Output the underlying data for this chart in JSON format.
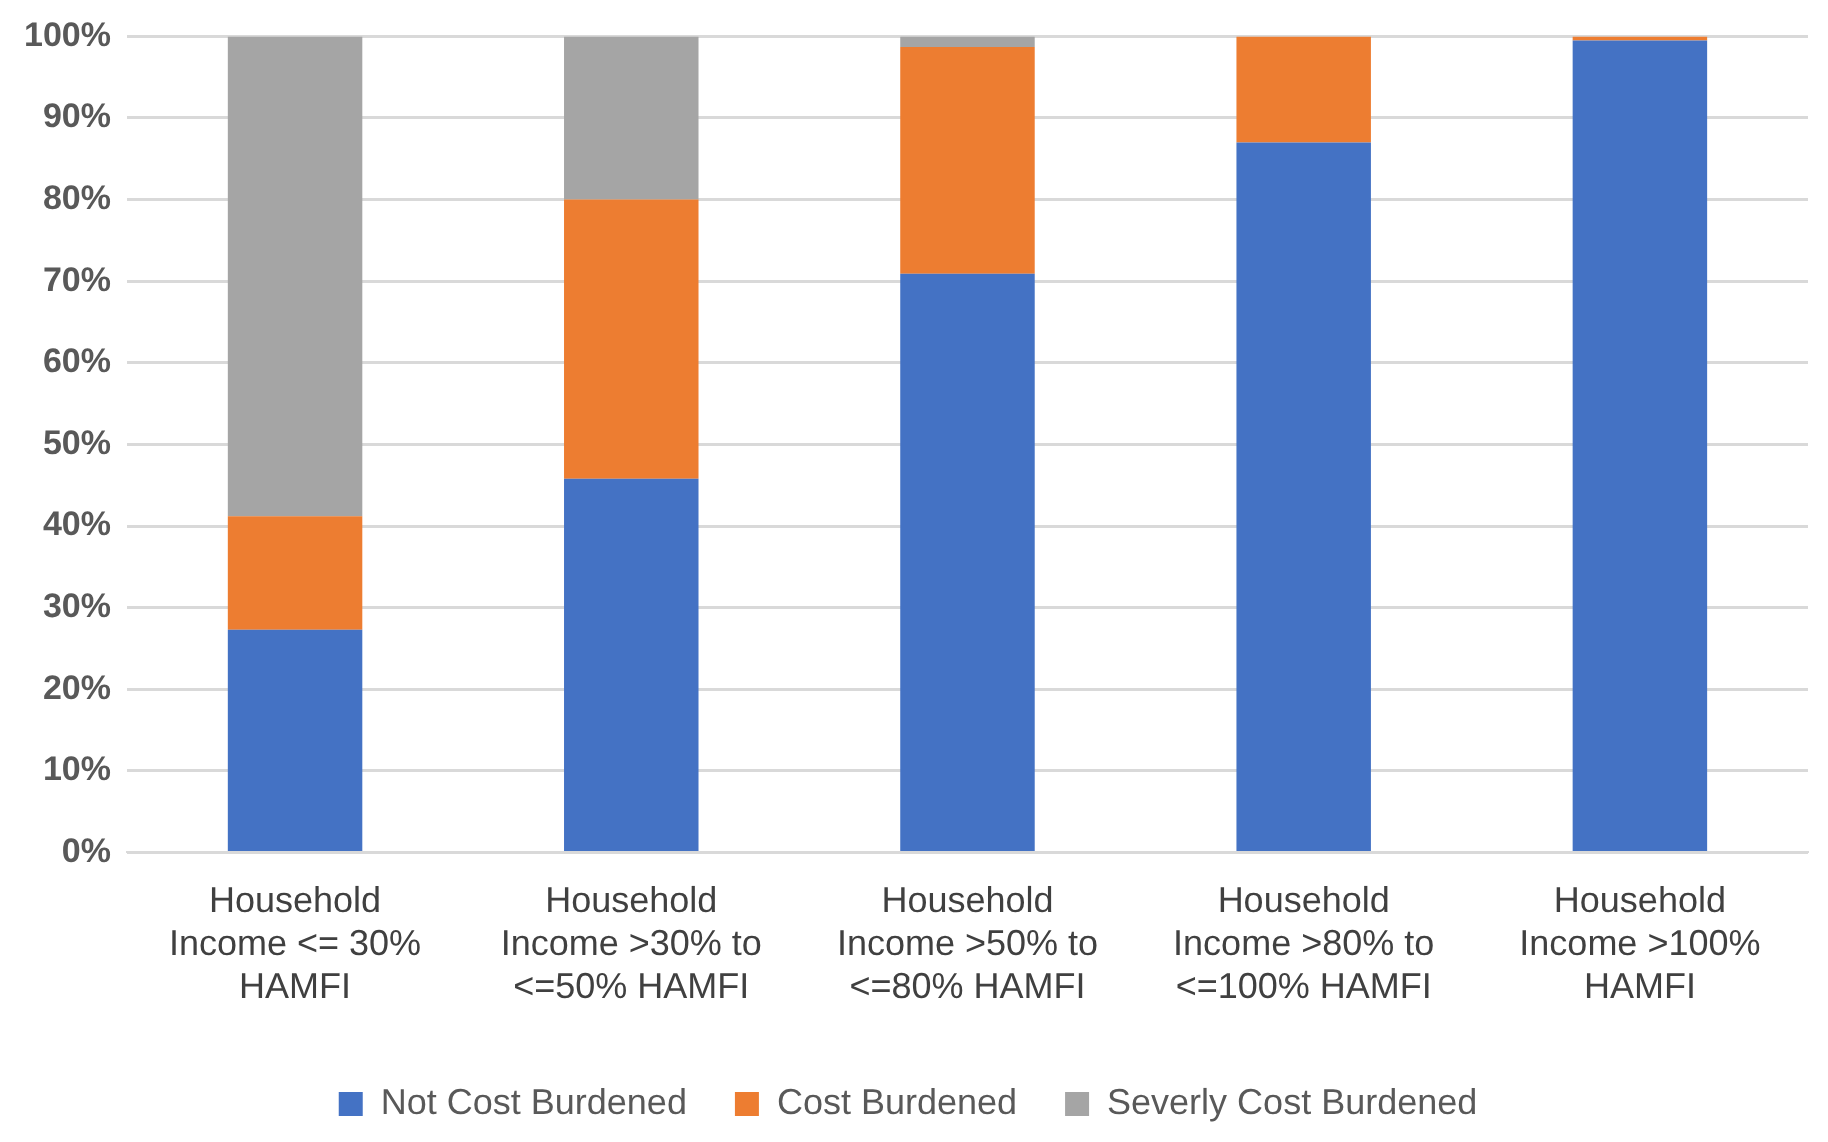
{
  "chart_data": {
    "type": "bar",
    "stacked": true,
    "categories": [
      "Household Income <= 30% HAMFI",
      "Household Income >30% to <=50% HAMFI",
      "Household Income >50% to <=80% HAMFI",
      "Household Income >80% to <=100% HAMFI",
      "Household Income >100% HAMFI"
    ],
    "series": [
      {
        "name": "Not Cost Burdened",
        "color": "#4472c4",
        "values": [
          27.3,
          45.8,
          70.9,
          87.0,
          99.5
        ]
      },
      {
        "name": "Cost Burdened",
        "color": "#ed7d31",
        "values": [
          13.9,
          34.2,
          27.8,
          13.0,
          0.5
        ]
      },
      {
        "name": "Severly Cost Burdened",
        "color": "#a5a5a5",
        "values": [
          58.8,
          20.0,
          1.3,
          0,
          0
        ]
      }
    ],
    "ylim": [
      0,
      100
    ],
    "yticks": [
      {
        "value": 0,
        "label": "0%"
      },
      {
        "value": 10,
        "label": "10%"
      },
      {
        "value": 20,
        "label": "20%"
      },
      {
        "value": 30,
        "label": "30%"
      },
      {
        "value": 40,
        "label": "40%"
      },
      {
        "value": 50,
        "label": "50%"
      },
      {
        "value": 60,
        "label": "60%"
      },
      {
        "value": 70,
        "label": "70%"
      },
      {
        "value": 80,
        "label": "80%"
      },
      {
        "value": 90,
        "label": "90%"
      },
      {
        "value": 100,
        "label": "100%"
      }
    ],
    "grid": "y",
    "legend": "bottom"
  }
}
